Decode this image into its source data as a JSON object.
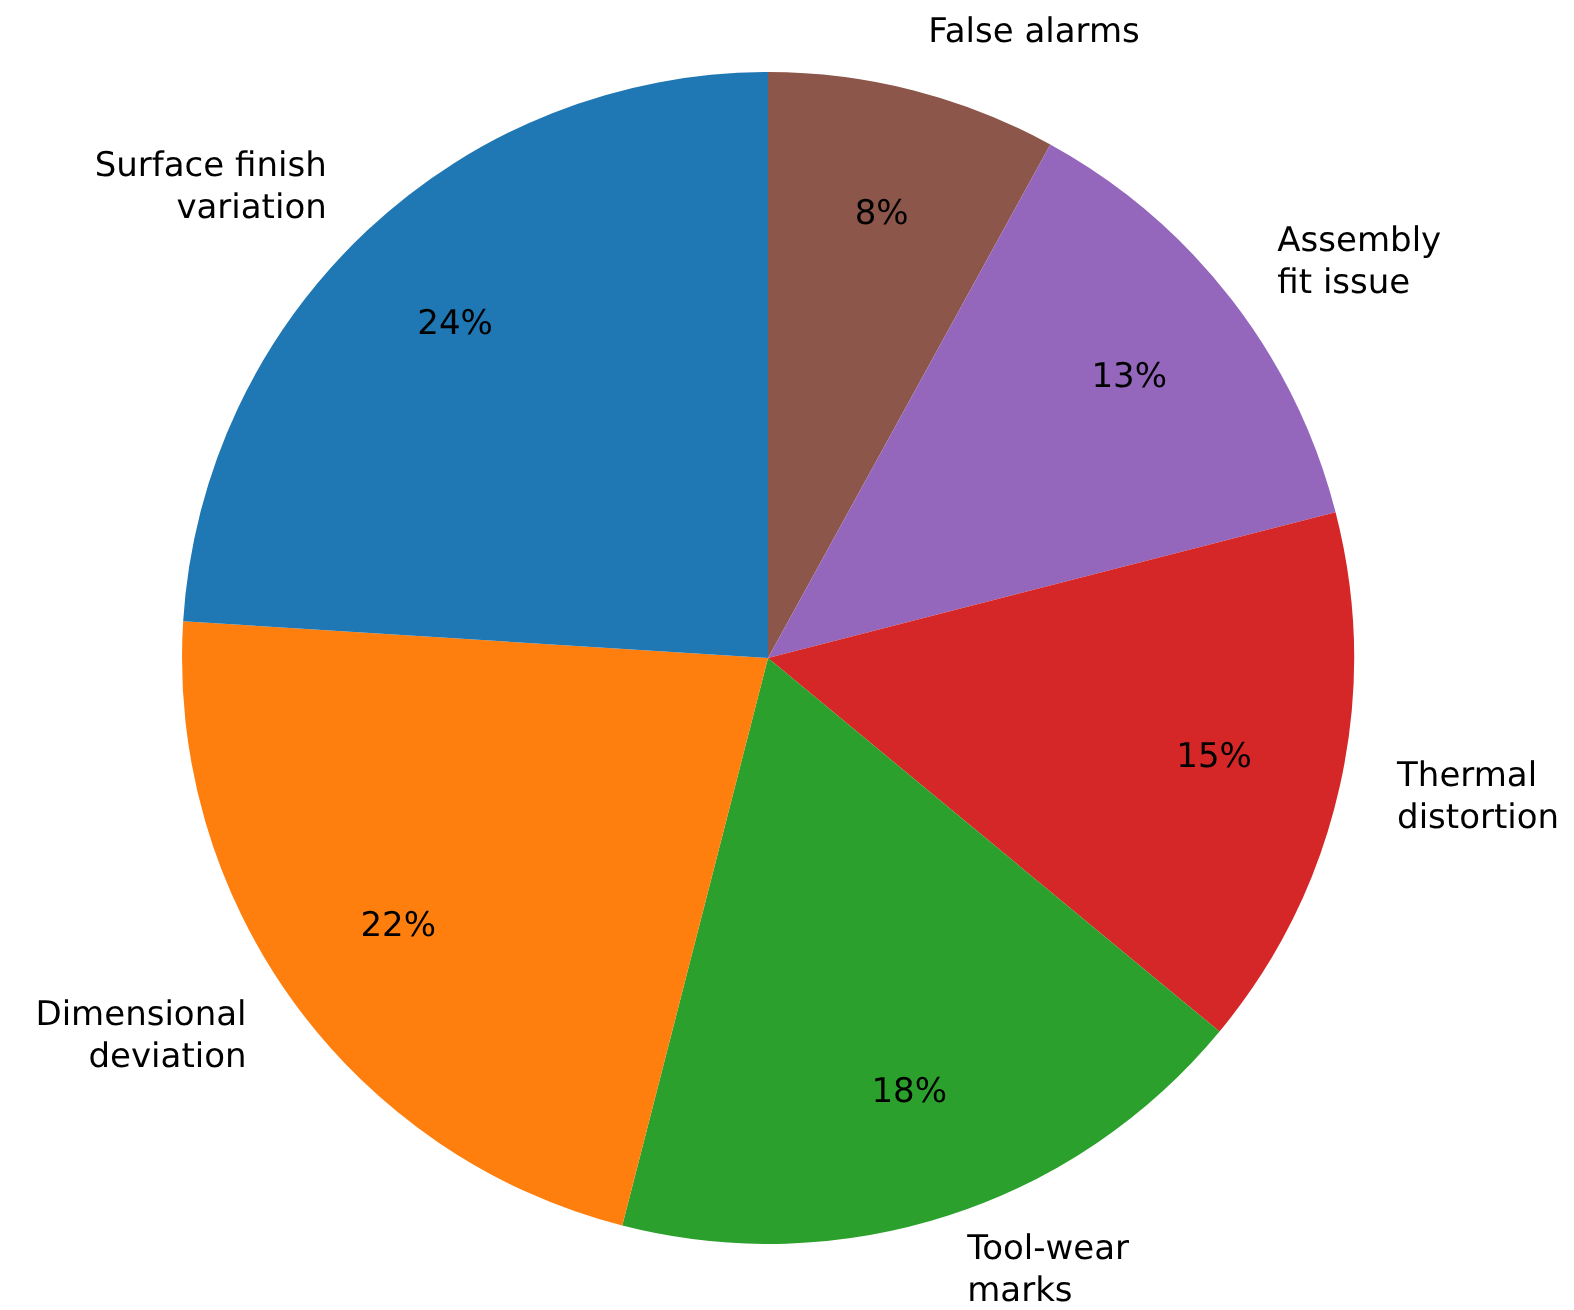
{
  "chart_data": {
    "type": "pie",
    "categories": [
      "False alarms",
      "Assembly\nfit issue",
      "Thermal\ndistortion",
      "Tool-wear\nmarks",
      "Dimensional\ndeviation",
      "Surface finish\nvariation"
    ],
    "values": [
      8,
      13,
      15,
      18,
      22,
      24
    ],
    "value_labels": [
      "8%",
      "13%",
      "15%",
      "18%",
      "22%",
      "24%"
    ],
    "colors": [
      "#8c564b",
      "#9467bd",
      "#d62728",
      "#2ca02c",
      "#ff7f0e",
      "#1f77b4"
    ],
    "legend": false
  }
}
